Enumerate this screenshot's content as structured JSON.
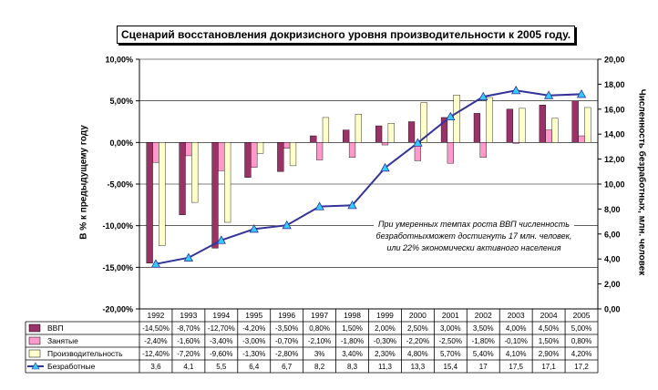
{
  "chart_data": {
    "type": "bar",
    "title": "Сценарий восстановления докризисного уровня производительности к 2005 году.",
    "ylabel": "В % к предыдущему году",
    "ylabel_right": "Численность безработных, млн. человек",
    "ylim": [
      -20,
      10
    ],
    "ylim_right": [
      0,
      20
    ],
    "yticks": [
      "10,00%",
      "5,00%",
      "0,00%",
      "-5,00%",
      "-10,00%",
      "-15,00%",
      "-20,00%"
    ],
    "yticks_right": [
      "20,00",
      "18,00",
      "16,00",
      "14,00",
      "12,00",
      "10,00",
      "8,00",
      "6,00",
      "4,00",
      "2,00",
      "0,00"
    ],
    "categories": [
      "1992",
      "1993",
      "1994",
      "1995",
      "1996",
      "1997",
      "1998",
      "1999",
      "2000",
      "2001",
      "2002",
      "2003",
      "2004",
      "2005"
    ],
    "series": [
      {
        "name": "ВВП",
        "kind": "bar",
        "color": "#993366",
        "values": [
          -14.5,
          -8.7,
          -12.7,
          -4.2,
          -3.5,
          0.8,
          1.5,
          2.0,
          2.5,
          3.0,
          3.5,
          4.0,
          4.5,
          5.0
        ],
        "labels": [
          "-14,50%",
          "-8,70%",
          "-12,70%",
          "-4,20%",
          "-3,50%",
          "0,80%",
          "1,50%",
          "2,00%",
          "2,50%",
          "3,00%",
          "3,50%",
          "4,00%",
          "4,50%",
          "5,00%"
        ]
      },
      {
        "name": "Занятые",
        "kind": "bar",
        "color": "#ff99cc",
        "values": [
          -2.4,
          -1.6,
          -3.4,
          -3.0,
          -0.7,
          -2.1,
          -1.8,
          -0.3,
          -2.2,
          -2.5,
          -1.8,
          -0.1,
          1.5,
          0.8
        ],
        "labels": [
          "-2,40%",
          "-1,60%",
          "-3,40%",
          "-3,00%",
          "-0,70%",
          "-2,10%",
          "-1,80%",
          "-0,30%",
          "-2,20%",
          "-2,50%",
          "-1,80%",
          "-0,10%",
          "1,50%",
          "0,80%"
        ]
      },
      {
        "name": "Производительность",
        "kind": "bar",
        "color": "#ffffcc",
        "values": [
          -12.4,
          -7.2,
          -9.6,
          -1.3,
          -2.8,
          3.0,
          3.4,
          2.3,
          4.8,
          5.7,
          5.4,
          4.1,
          2.9,
          4.2
        ],
        "labels": [
          "-12,40%",
          "-7,20%",
          "-9,60%",
          "-1,30%",
          "-2,80%",
          "3%",
          "3,40%",
          "2,30%",
          "4,80%",
          "5,70%",
          "5,40%",
          "4,10%",
          "2,90%",
          "4,20%"
        ]
      },
      {
        "name": "Безработные",
        "kind": "line",
        "axis": "right",
        "color": "#333399",
        "marker_color": "#33ccff",
        "values": [
          3.6,
          4.1,
          5.5,
          6.4,
          6.7,
          8.2,
          8.3,
          11.3,
          13.3,
          15.4,
          17,
          17.5,
          17.1,
          17.2
        ],
        "labels": [
          "3,6",
          "4,1",
          "5,5",
          "6,4",
          "6,7",
          "8,2",
          "8,3",
          "11,3",
          "13,3",
          "15,4",
          "17",
          "17,5",
          "17,1",
          "17,2"
        ]
      }
    ],
    "annotation": "При умеренных темпах роста ВВП численность безработныхможет достигнуть 17 млн. человек, или 22% экономически активного населения",
    "grid": "horizontal",
    "legend": "table-below"
  }
}
